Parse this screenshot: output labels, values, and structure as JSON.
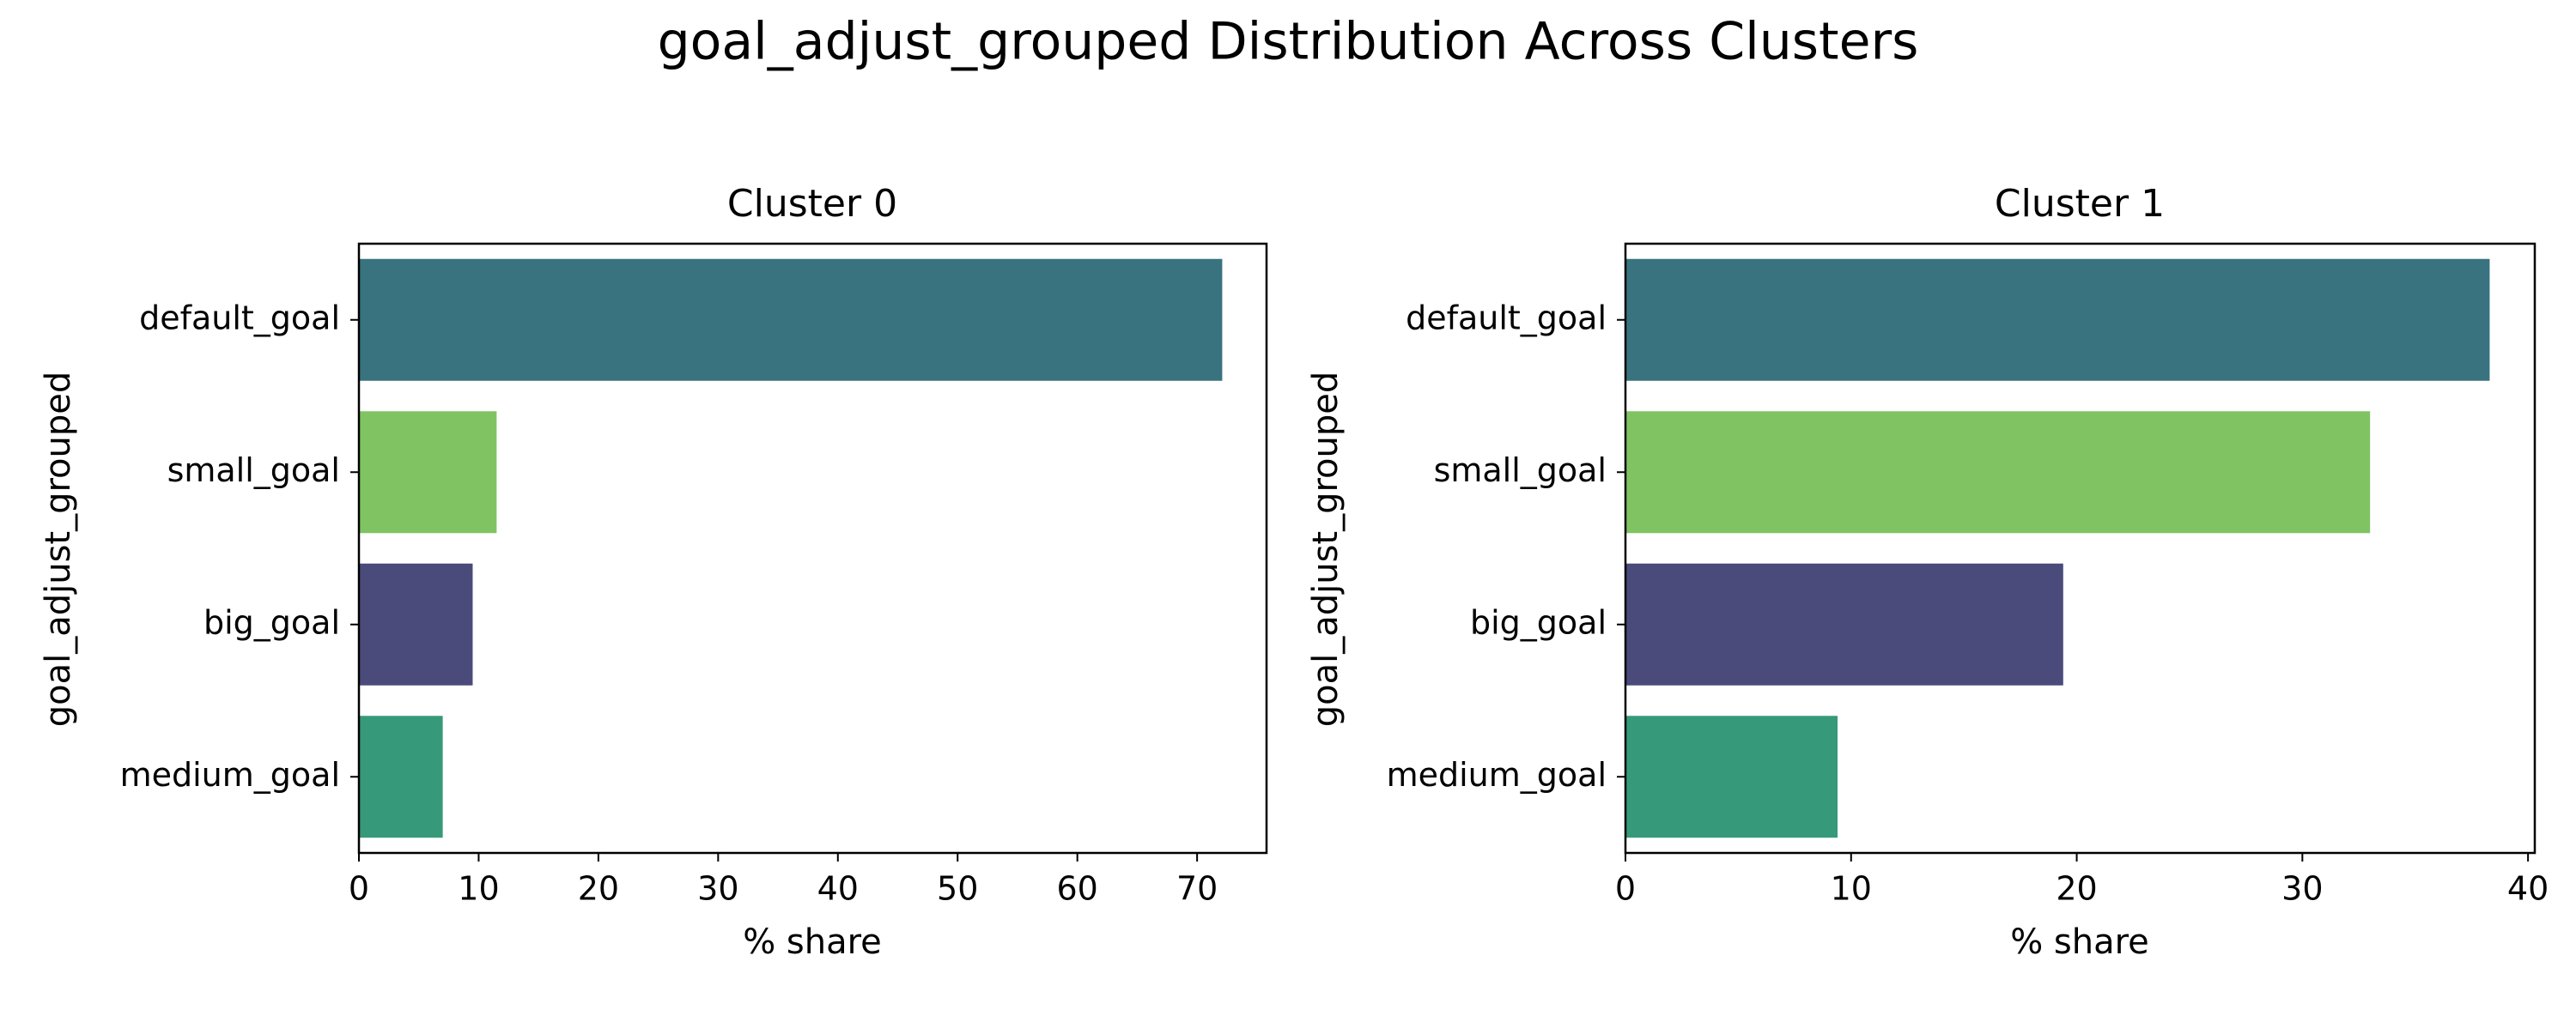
{
  "title": "goal_adjust_grouped Distribution Across Clusters",
  "colors": {
    "default_goal": "#38737F",
    "small_goal": "#80C363",
    "big_goal": "#4A4B7B",
    "medium_goal": "#36997A"
  },
  "chart_data": [
    {
      "type": "bar",
      "orientation": "horizontal",
      "title": "Cluster 0",
      "xlabel": "% share",
      "ylabel": "goal_adjust_grouped",
      "categories": [
        "default_goal",
        "small_goal",
        "big_goal",
        "medium_goal"
      ],
      "values": [
        72.1,
        11.5,
        9.5,
        7.0
      ],
      "xlim": [
        0,
        75.8
      ],
      "xticks": [
        0,
        10,
        20,
        30,
        40,
        50,
        60,
        70
      ],
      "grid": false
    },
    {
      "type": "bar",
      "orientation": "horizontal",
      "title": "Cluster 1",
      "xlabel": "% share",
      "ylabel": "goal_adjust_grouped",
      "categories": [
        "default_goal",
        "small_goal",
        "big_goal",
        "medium_goal"
      ],
      "values": [
        38.3,
        33.0,
        19.4,
        9.4
      ],
      "xlim": [
        0,
        40.3
      ],
      "xticks": [
        0,
        10,
        20,
        30,
        40
      ],
      "grid": false
    }
  ]
}
